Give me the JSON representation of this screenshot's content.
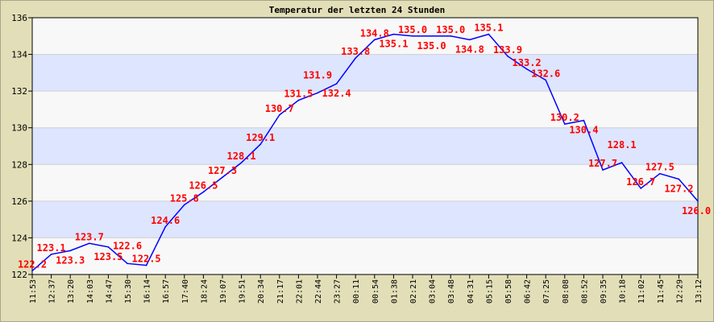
{
  "chart_data": {
    "type": "line",
    "title": "Temperatur der letzten 24 Stunden",
    "xlabel": "",
    "ylabel": "",
    "ylim": [
      122,
      136
    ],
    "yticks": [
      122,
      124,
      126,
      128,
      130,
      132,
      134,
      136
    ],
    "grid": true,
    "categories": [
      "11:53",
      "12:37",
      "13:20",
      "14:03",
      "14:47",
      "15:30",
      "16:14",
      "16:57",
      "17:40",
      "18:24",
      "19:07",
      "19:51",
      "20:34",
      "21:17",
      "22:01",
      "22:44",
      "23:27",
      "00:11",
      "00:54",
      "01:38",
      "02:21",
      "03:04",
      "03:48",
      "04:31",
      "05:15",
      "05:58",
      "06:42",
      "07:25",
      "08:08",
      "08:52",
      "09:35",
      "10:18",
      "11:02",
      "11:45",
      "12:29",
      "13:12"
    ],
    "series": [
      {
        "values": [
          122.2,
          123.1,
          123.3,
          123.7,
          123.5,
          122.6,
          122.5,
          124.6,
          125.8,
          126.5,
          127.3,
          128.1,
          129.1,
          130.7,
          131.5,
          131.9,
          132.4,
          133.8,
          134.8,
          135.1,
          135.0,
          135.0,
          135.0,
          134.8,
          135.1,
          133.9,
          133.2,
          132.6,
          130.2,
          130.4,
          127.7,
          128.1,
          126.7,
          127.5,
          127.2,
          126.0
        ]
      }
    ],
    "colors": {
      "line": "#0000ff",
      "labels": "#ff0000",
      "band_light": "#f8f8f8",
      "band_blue": "#dde5ff",
      "frame": "#e2dfb8"
    }
  }
}
